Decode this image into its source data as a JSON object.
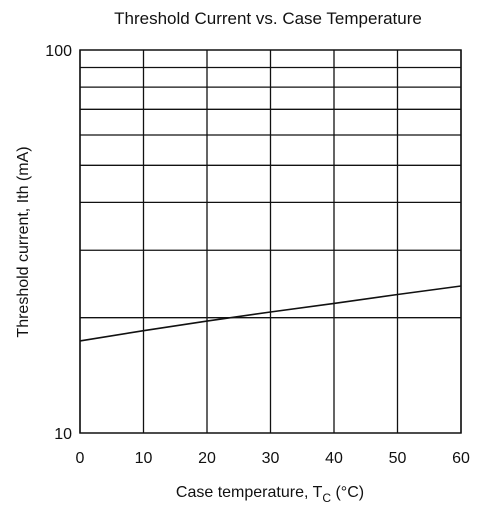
{
  "chart_data": {
    "type": "line",
    "title": "Threshold Current vs. Case Temperature",
    "xlabel": {
      "main": "Case temperature,  T",
      "sub": "C",
      "unit": " (°C)"
    },
    "ylabel": "Threshold current,  Ith  (mA)",
    "x_scale": "linear",
    "y_scale": "log",
    "xlim": [
      0,
      60
    ],
    "ylim": [
      10,
      100
    ],
    "x_ticks": [
      0,
      10,
      20,
      30,
      40,
      50,
      60
    ],
    "x_tick_labels": [
      "0",
      "10",
      "20",
      "30",
      "40",
      "50",
      "60"
    ],
    "y_ticks": [
      10,
      100
    ],
    "y_tick_labels": [
      "10",
      "100"
    ],
    "y_gridlines": [
      20,
      30,
      40,
      50,
      60,
      70,
      80,
      90
    ],
    "grid": true,
    "series": [
      {
        "x": [
          0,
          10,
          20,
          30,
          40,
          50,
          60
        ],
        "y": [
          17.4,
          18.5,
          19.6,
          20.7,
          21.8,
          23.0,
          24.2
        ]
      }
    ],
    "colors": {
      "line": "#111111",
      "grid": "#111111",
      "background": "#ffffff"
    }
  }
}
